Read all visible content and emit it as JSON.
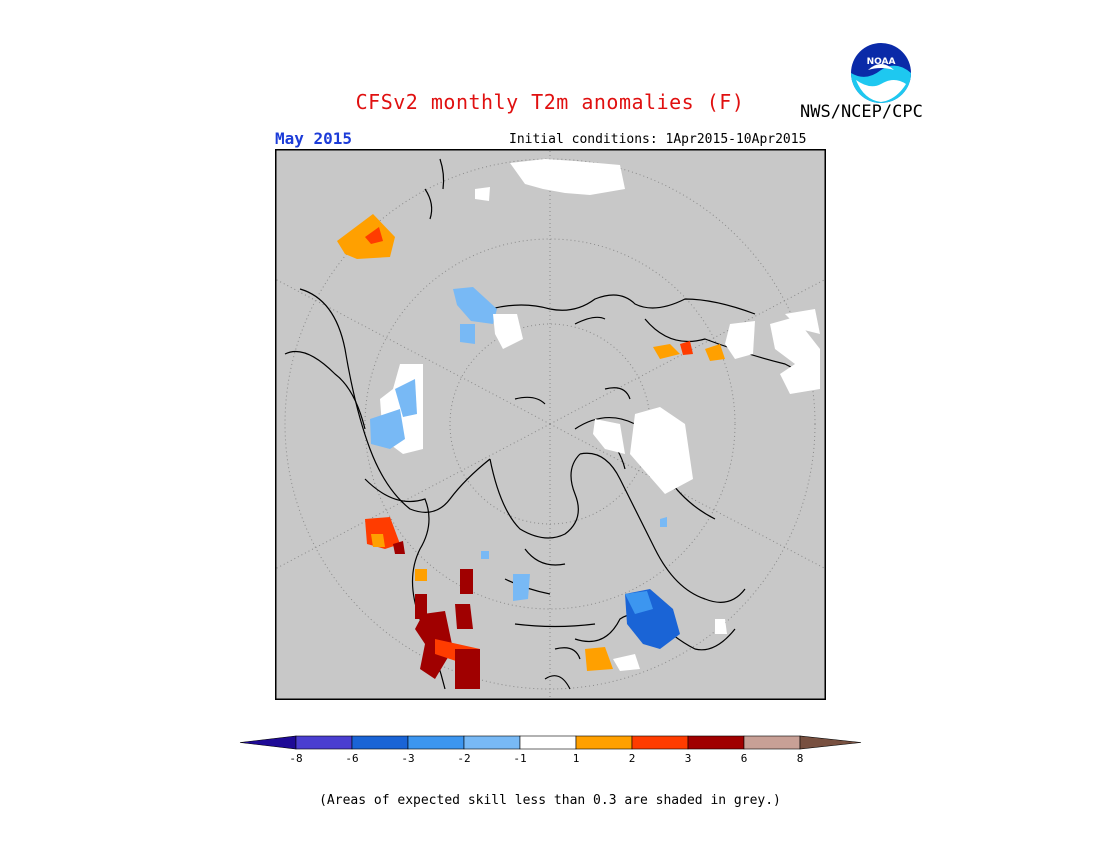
{
  "title": "CFSv2 monthly T2m anomalies (F)",
  "agency": "NWS/NCEP/CPC",
  "period": "May 2015",
  "initial_conditions": "Initial conditions: 1Apr2015-10Apr2015",
  "footnote": "(Areas of expected skill less than 0.3 are shaded in grey.)",
  "logo_text": "NOAA",
  "colors": {
    "background_map": "#c8c8c8",
    "title": "#e01010",
    "period": "#1c3cd8"
  },
  "legend": {
    "bins": [
      {
        "color": "#1e0a96",
        "label": "-8"
      },
      {
        "color": "#4a3ed0",
        "label": "-6"
      },
      {
        "color": "#1a64d6",
        "label": "-3"
      },
      {
        "color": "#3c96f0",
        "label": "-2"
      },
      {
        "color": "#78b9f5",
        "label": "-1"
      },
      {
        "color": "#ffffff",
        "label": "1"
      },
      {
        "color": "#ffa000",
        "label": "2"
      },
      {
        "color": "#ff3c00",
        "label": "3"
      },
      {
        "color": "#a00000",
        "label": "6"
      },
      {
        "color": "#c8a096",
        "label": "8"
      },
      {
        "color": "#785040",
        "label": ""
      }
    ]
  }
}
